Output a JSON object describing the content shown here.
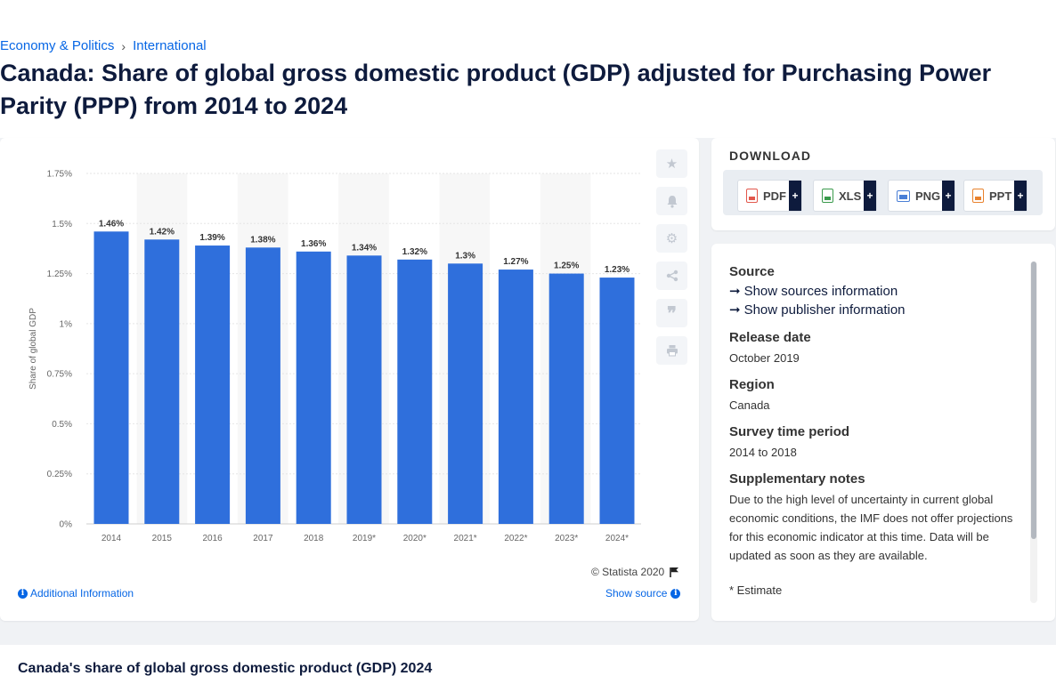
{
  "breadcrumb": {
    "items": [
      "Economy & Politics",
      "International"
    ],
    "separator": "›"
  },
  "page_title": "Canada: Share of global gross domestic product (GDP) adjusted for Purchasing Power Parity (PPP) from 2014 to 2024",
  "chart_data": {
    "type": "bar",
    "categories": [
      "2014",
      "2015",
      "2016",
      "2017",
      "2018",
      "2019*",
      "2020*",
      "2021*",
      "2022*",
      "2023*",
      "2024*"
    ],
    "values": [
      1.46,
      1.42,
      1.39,
      1.38,
      1.36,
      1.34,
      1.32,
      1.3,
      1.27,
      1.25,
      1.23
    ],
    "data_labels": [
      "1.46%",
      "1.42%",
      "1.39%",
      "1.38%",
      "1.36%",
      "1.34%",
      "1.32%",
      "1.3%",
      "1.27%",
      "1.25%",
      "1.23%"
    ],
    "title": "",
    "xlabel": "",
    "ylabel": "Share of global GDP",
    "ylim": [
      0,
      1.75
    ],
    "yticks": [
      0,
      0.25,
      0.5,
      0.75,
      1,
      1.25,
      1.5,
      1.75
    ],
    "ytick_labels": [
      "0%",
      "0.25%",
      "0.5%",
      "0.75%",
      "1%",
      "1.25%",
      "1.5%",
      "1.75%"
    ],
    "bar_color": "#2f6fdc",
    "grid": true,
    "legend": "none"
  },
  "chart_footer": {
    "copyright": "© Statista 2020",
    "additional_info": "Additional Information",
    "show_source": "Show source"
  },
  "toolbar": {
    "icons": [
      "star-icon",
      "bell-icon",
      "gear-icon",
      "share-icon",
      "quote-icon",
      "print-icon"
    ]
  },
  "download": {
    "title": "DOWNLOAD",
    "buttons": [
      {
        "label": "PDF",
        "color": "#e2574c"
      },
      {
        "label": "XLS",
        "color": "#3a9a4c"
      },
      {
        "label": "PNG",
        "color": "#4a7fd6"
      },
      {
        "label": "PPT",
        "color": "#e8822e"
      }
    ],
    "plus": "+"
  },
  "source_panel": {
    "source_heading": "Source",
    "show_sources": "Show sources information",
    "show_publisher": "Show publisher information",
    "release_heading": "Release date",
    "release_value": "October 2019",
    "region_heading": "Region",
    "region_value": "Canada",
    "survey_heading": "Survey time period",
    "survey_value": "2014 to 2018",
    "notes_heading": "Supplementary notes",
    "notes_value": "Due to the high level of uncertainty in current global economic conditions, the IMF does not offer projections for this economic indicator at this time. Data will be updated as soon as they are available.",
    "estimate_note": "* Estimate"
  },
  "bottom_title": "Canada's share of global gross domestic product (GDP) 2024"
}
